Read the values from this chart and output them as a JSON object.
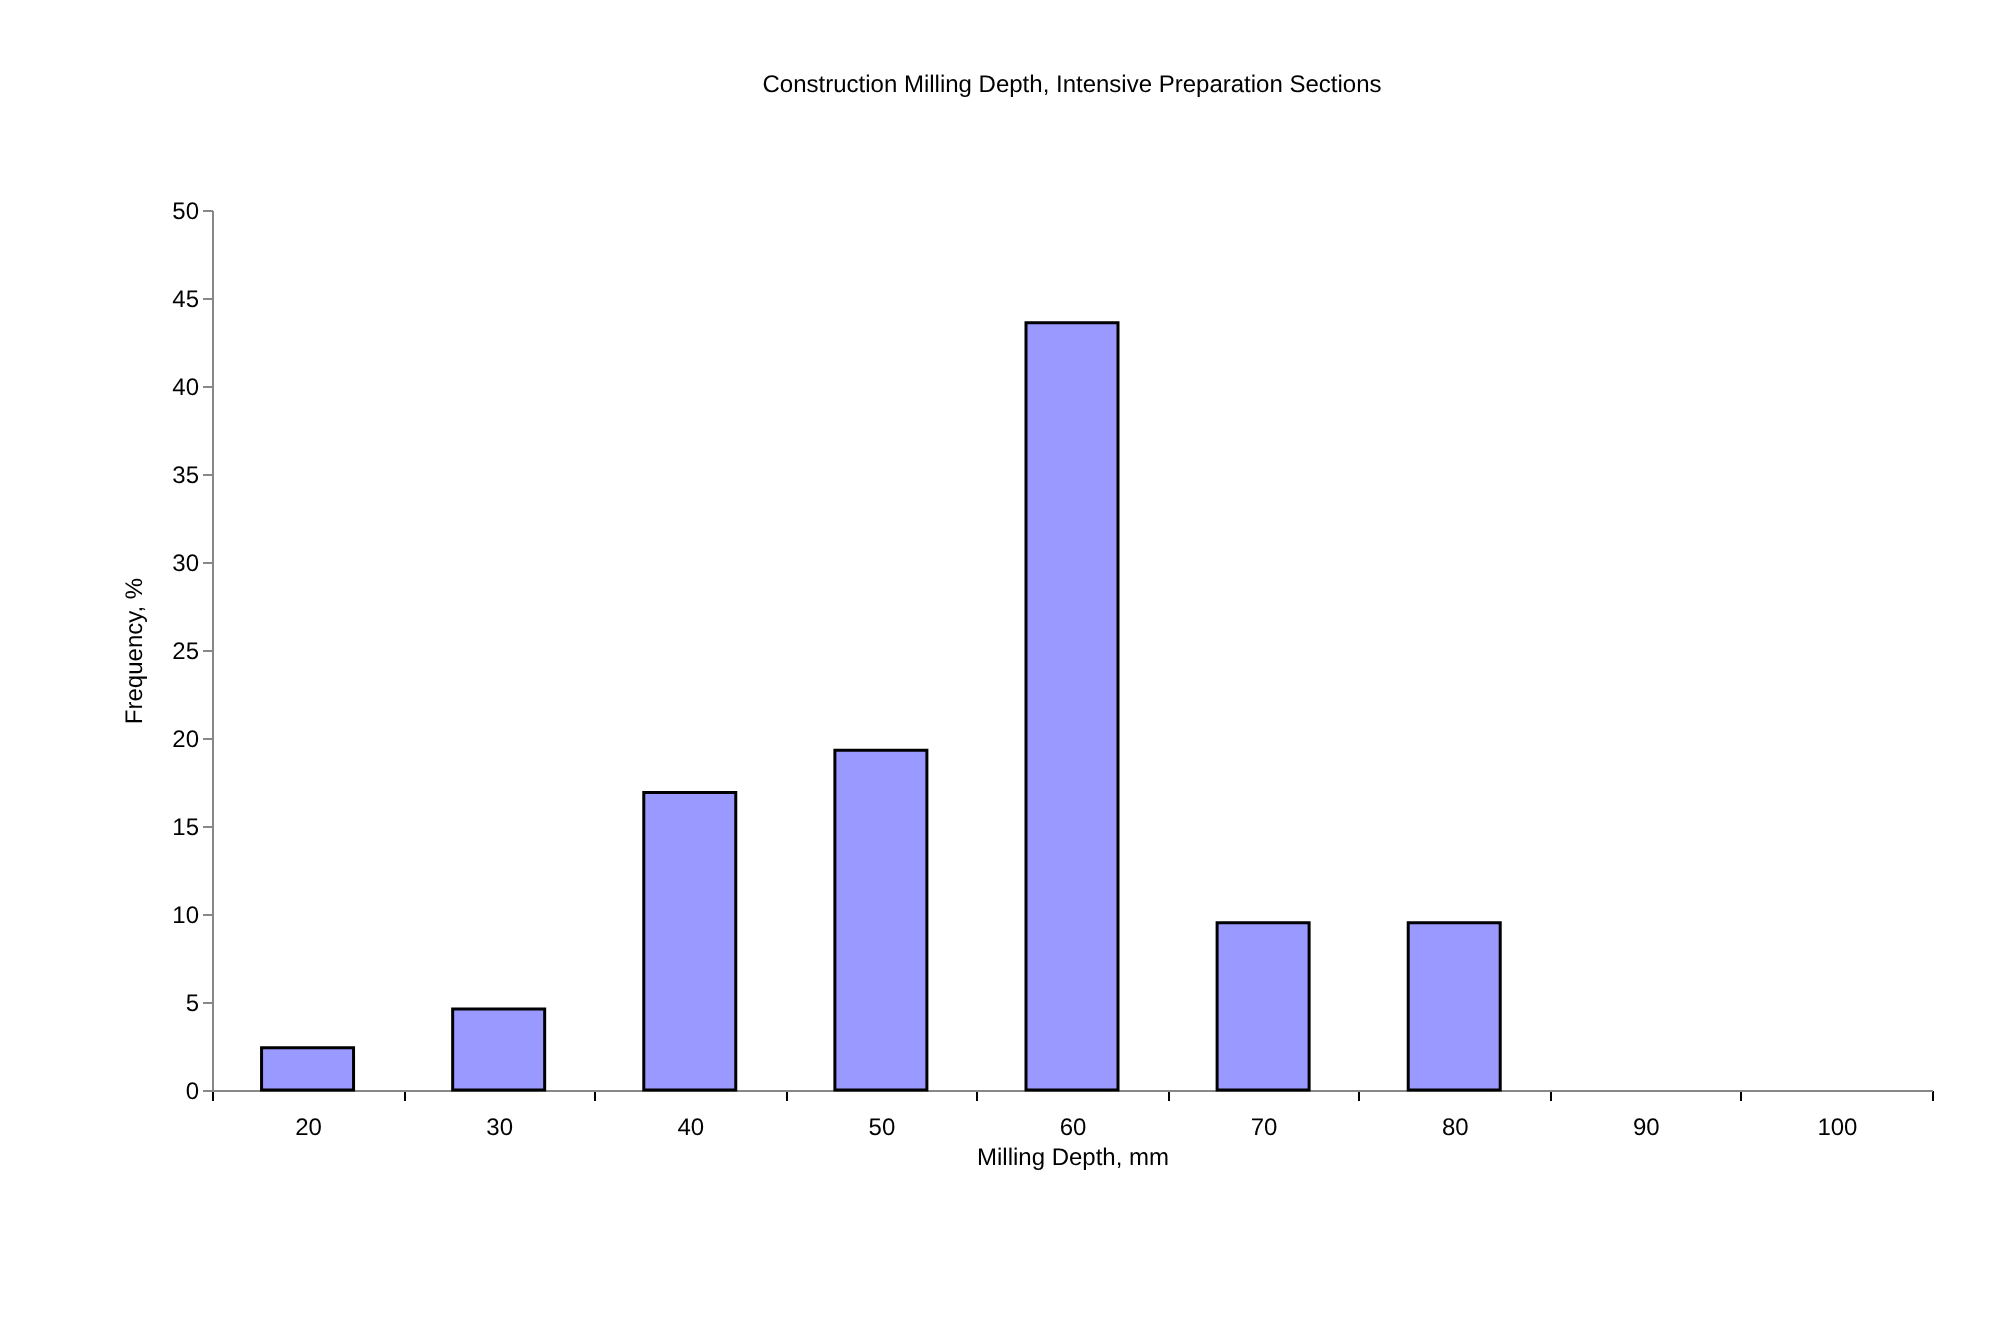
{
  "chart_data": {
    "type": "bar",
    "title": "Construction Milling Depth, Intensive Preparation Sections",
    "xlabel": "Milling Depth, mm",
    "ylabel": "Frequency, %",
    "categories": [
      "20",
      "30",
      "40",
      "50",
      "60",
      "70",
      "80",
      "90",
      "100"
    ],
    "values": [
      2.4,
      4.6,
      16.9,
      19.3,
      43.6,
      9.5,
      9.5,
      null,
      null
    ],
    "color": "#9999ff",
    "ylim": [
      0,
      50
    ],
    "yticks": [
      0,
      5,
      10,
      15,
      20,
      25,
      30,
      35,
      40,
      45,
      50
    ],
    "grid": false
  }
}
